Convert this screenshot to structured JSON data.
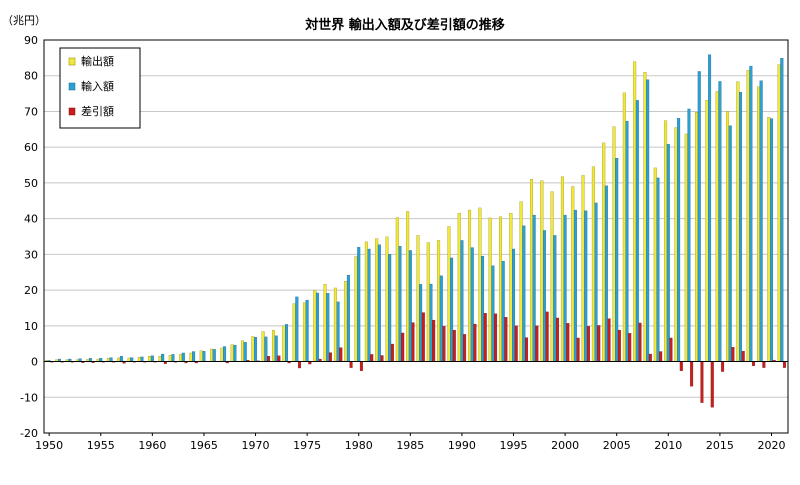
{
  "chart_data": {
    "type": "bar",
    "title": "対世界 輸出入額及び差引額の推移",
    "ylabel": "（兆円）",
    "xlabel": "",
    "ylim": [
      -20,
      90
    ],
    "yticks": [
      -20,
      -10,
      0,
      10,
      20,
      30,
      40,
      50,
      60,
      70,
      80,
      90
    ],
    "xtick_labels": [
      "1950",
      "1955",
      "1960",
      "1965",
      "1970",
      "1975",
      "1980",
      "1985",
      "1990",
      "1995",
      "2000",
      "2005",
      "2010",
      "2015",
      "2020"
    ],
    "legend_position": "top-left",
    "grid": true,
    "x": [
      1950,
      1951,
      1952,
      1953,
      1954,
      1955,
      1956,
      1957,
      1958,
      1959,
      1960,
      1961,
      1962,
      1963,
      1964,
      1965,
      1966,
      1967,
      1968,
      1969,
      1970,
      1971,
      1972,
      1973,
      1974,
      1975,
      1976,
      1977,
      1978,
      1979,
      1980,
      1981,
      1982,
      1983,
      1984,
      1985,
      1986,
      1987,
      1988,
      1989,
      1990,
      1991,
      1992,
      1993,
      1994,
      1995,
      1996,
      1997,
      1998,
      1999,
      2000,
      2001,
      2002,
      2003,
      2004,
      2005,
      2006,
      2007,
      2008,
      2009,
      2010,
      2011,
      2012,
      2013,
      2014,
      2015,
      2016,
      2017,
      2018,
      2019,
      2020,
      2021
    ],
    "series": [
      {
        "name": "輸出額",
        "color": "#f2e83a",
        "values": [
          0.3,
          0.5,
          0.5,
          0.5,
          0.6,
          0.7,
          0.9,
          1.0,
          1.0,
          1.2,
          1.5,
          1.5,
          1.8,
          2.0,
          2.4,
          3.0,
          3.5,
          3.8,
          4.7,
          5.8,
          7.0,
          8.4,
          8.8,
          10.0,
          16.2,
          16.5,
          19.9,
          21.6,
          20.6,
          22.5,
          29.4,
          33.5,
          34.4,
          34.9,
          40.3,
          42.0,
          35.3,
          33.3,
          33.9,
          37.8,
          41.5,
          42.4,
          43.0,
          40.2,
          40.5,
          41.5,
          44.7,
          51.0,
          50.6,
          47.5,
          51.7,
          49.0,
          52.1,
          54.5,
          61.2,
          65.7,
          75.2,
          83.9,
          81.0,
          54.2,
          67.4,
          65.5,
          63.7,
          69.8,
          73.1,
          75.6,
          70.0,
          78.3,
          81.5,
          76.9,
          68.4,
          83.1
        ]
      },
      {
        "name": "輸入額",
        "color": "#2aa0d4",
        "values": [
          0.3,
          0.7,
          0.7,
          0.8,
          0.9,
          0.9,
          1.1,
          1.5,
          1.1,
          1.3,
          1.6,
          2.1,
          2.0,
          2.4,
          2.8,
          2.9,
          3.4,
          4.2,
          4.6,
          5.4,
          6.8,
          6.9,
          7.2,
          10.4,
          18.1,
          17.2,
          19.2,
          19.1,
          16.7,
          24.2,
          32.0,
          31.5,
          32.7,
          30.0,
          32.3,
          31.1,
          21.6,
          21.7,
          24.0,
          29.0,
          33.9,
          31.9,
          29.5,
          26.8,
          28.1,
          31.5,
          38.0,
          41.0,
          36.7,
          35.3,
          41.0,
          42.4,
          42.2,
          44.4,
          49.2,
          56.9,
          67.3,
          73.1,
          78.9,
          51.4,
          60.8,
          68.1,
          70.7,
          81.2,
          85.9,
          78.4,
          66.0,
          75.4,
          82.7,
          78.6,
          68.0,
          84.9
        ]
      },
      {
        "name": "差引額",
        "color": "#c81e1e",
        "values": [
          0.0,
          -0.2,
          -0.2,
          -0.3,
          -0.3,
          -0.2,
          -0.2,
          -0.5,
          -0.1,
          -0.1,
          -0.1,
          -0.6,
          -0.2,
          -0.4,
          -0.4,
          0.1,
          0.1,
          -0.4,
          0.1,
          0.4,
          0.2,
          1.5,
          1.6,
          -0.4,
          -1.8,
          -0.7,
          0.7,
          2.5,
          3.9,
          -1.7,
          -2.6,
          2.0,
          1.7,
          4.9,
          8.0,
          10.9,
          13.7,
          11.6,
          9.9,
          8.8,
          7.6,
          10.5,
          13.5,
          13.4,
          12.4,
          10.0,
          6.7,
          10.0,
          13.9,
          12.2,
          10.7,
          6.6,
          9.9,
          10.1,
          12.0,
          8.8,
          7.9,
          10.8,
          2.1,
          2.8,
          6.6,
          -2.6,
          -6.9,
          -11.5,
          -12.8,
          -2.8,
          4.0,
          2.9,
          -1.2,
          -1.7,
          0.4,
          -1.7
        ]
      }
    ]
  }
}
